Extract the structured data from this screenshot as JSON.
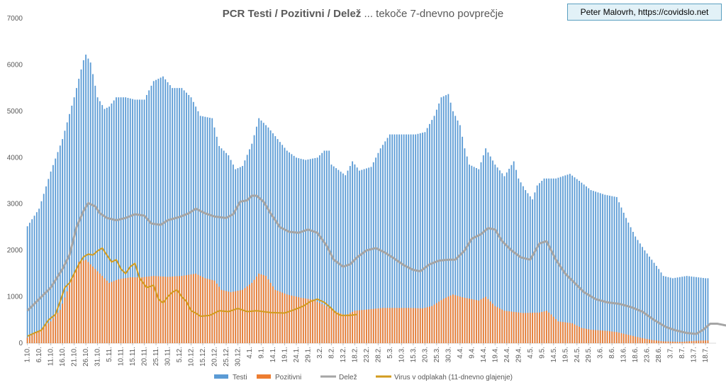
{
  "chart_data": {
    "type": "bar+line",
    "title_bold": "PCR Testi / Pozitivni / Delež",
    "title_rest": " ... tekoče 7-dnevno povprečje",
    "credit": "Peter Malovrh, https://covidslo.net",
    "y_ticks": [
      "0",
      "1000",
      "2000",
      "3000",
      "4000",
      "5000",
      "6000",
      "7000"
    ],
    "ylim": [
      0,
      7000
    ],
    "x_tick_labels": [
      "1.10.",
      "6.10.",
      "11.10.",
      "16.10.",
      "21.10.",
      "26.10.",
      "31.10.",
      "5.11.",
      "10.11.",
      "15.11.",
      "20.11.",
      "25.11.",
      "30.11.",
      "5.12.",
      "10.12.",
      "15.12.",
      "20.12.",
      "25.12.",
      "30.12.",
      "4.1.",
      "9.1.",
      "14.1.",
      "19.1.",
      "24.1.",
      "29.1.",
      "3.2.",
      "8.2.",
      "13.2.",
      "18.2.",
      "23.2.",
      "28.2.",
      "5.3.",
      "10.3.",
      "15.3.",
      "20.3.",
      "25.3.",
      "30.3.",
      "4.4.",
      "9.4.",
      "14.4.",
      "19.4.",
      "24.4.",
      "29.4.",
      "4.5.",
      "9.5.",
      "14.5.",
      "19.5.",
      "24.5.",
      "29.5.",
      "3.6.",
      "8.6.",
      "13.6.",
      "18.6.",
      "23.6.",
      "28.6.",
      "3.7.",
      "8.7.",
      "13.7.",
      "18.7."
    ],
    "days_total": 295,
    "colors": {
      "testi": "#5b9bd5",
      "pozitivni": "#ed7d31",
      "delez": "#a5a5a5",
      "virus": "#d29b1e"
    },
    "legend": [
      {
        "label": "Testi",
        "color": "#5b9bd5",
        "kind": "bar"
      },
      {
        "label": "Pozitivni",
        "color": "#ed7d31",
        "kind": "bar"
      },
      {
        "label": "Delež",
        "color": "#a5a5a5",
        "kind": "line"
      },
      {
        "label": "Virus v odplakah (11-dnevno glajenje)",
        "color": "#d29b1e",
        "kind": "line"
      }
    ],
    "testi_knots": [
      [
        0,
        2520
      ],
      [
        5,
        2900
      ],
      [
        10,
        3700
      ],
      [
        15,
        4400
      ],
      [
        20,
        5300
      ],
      [
        24,
        6100
      ],
      [
        25,
        6220
      ],
      [
        27,
        6050
      ],
      [
        30,
        5300
      ],
      [
        33,
        5050
      ],
      [
        35,
        5100
      ],
      [
        38,
        5300
      ],
      [
        42,
        5300
      ],
      [
        46,
        5250
      ],
      [
        50,
        5250
      ],
      [
        54,
        5650
      ],
      [
        58,
        5750
      ],
      [
        62,
        5500
      ],
      [
        66,
        5500
      ],
      [
        70,
        5300
      ],
      [
        74,
        4900
      ],
      [
        79,
        4850
      ],
      [
        82,
        4250
      ],
      [
        86,
        4050
      ],
      [
        89,
        3750
      ],
      [
        92,
        3820
      ],
      [
        96,
        4300
      ],
      [
        99,
        4850
      ],
      [
        103,
        4650
      ],
      [
        107,
        4400
      ],
      [
        111,
        4150
      ],
      [
        115,
        4000
      ],
      [
        119,
        3950
      ],
      [
        124,
        4000
      ],
      [
        127,
        4150
      ],
      [
        129,
        4150
      ],
      [
        130,
        3850
      ],
      [
        136,
        3620
      ],
      [
        139,
        3920
      ],
      [
        142,
        3720
      ],
      [
        147,
        3800
      ],
      [
        151,
        4200
      ],
      [
        155,
        4500
      ],
      [
        160,
        4500
      ],
      [
        166,
        4500
      ],
      [
        170,
        4550
      ],
      [
        174,
        4900
      ],
      [
        177,
        5300
      ],
      [
        180,
        5370
      ],
      [
        182,
        5000
      ],
      [
        185,
        4700
      ],
      [
        187,
        4200
      ],
      [
        189,
        3850
      ],
      [
        193,
        3750
      ],
      [
        196,
        4200
      ],
      [
        200,
        3850
      ],
      [
        204,
        3600
      ],
      [
        208,
        3920
      ],
      [
        210,
        3550
      ],
      [
        213,
        3300
      ],
      [
        216,
        3100
      ],
      [
        218,
        3400
      ],
      [
        221,
        3550
      ],
      [
        226,
        3550
      ],
      [
        232,
        3650
      ],
      [
        236,
        3500
      ],
      [
        241,
        3300
      ],
      [
        247,
        3200
      ],
      [
        252,
        3150
      ],
      [
        256,
        2700
      ],
      [
        260,
        2300
      ],
      [
        264,
        2000
      ],
      [
        267,
        1800
      ],
      [
        270,
        1600
      ],
      [
        272,
        1450
      ],
      [
        276,
        1400
      ],
      [
        282,
        1450
      ],
      [
        290,
        1400
      ],
      [
        291,
        1400
      ]
    ],
    "pozitivni_knots": [
      [
        0,
        120
      ],
      [
        5,
        260
      ],
      [
        10,
        470
      ],
      [
        14,
        720
      ],
      [
        18,
        1250
      ],
      [
        22,
        1750
      ],
      [
        25,
        1800
      ],
      [
        28,
        1650
      ],
      [
        32,
        1450
      ],
      [
        35,
        1300
      ],
      [
        39,
        1380
      ],
      [
        44,
        1420
      ],
      [
        49,
        1420
      ],
      [
        54,
        1450
      ],
      [
        60,
        1430
      ],
      [
        66,
        1450
      ],
      [
        72,
        1500
      ],
      [
        76,
        1400
      ],
      [
        80,
        1350
      ],
      [
        83,
        1150
      ],
      [
        87,
        1100
      ],
      [
        92,
        1150
      ],
      [
        96,
        1300
      ],
      [
        99,
        1500
      ],
      [
        102,
        1450
      ],
      [
        106,
        1150
      ],
      [
        111,
        1050
      ],
      [
        117,
        980
      ],
      [
        122,
        940
      ],
      [
        127,
        820
      ],
      [
        132,
        680
      ],
      [
        136,
        600
      ],
      [
        140,
        700
      ],
      [
        146,
        730
      ],
      [
        152,
        760
      ],
      [
        158,
        760
      ],
      [
        164,
        760
      ],
      [
        169,
        750
      ],
      [
        173,
        800
      ],
      [
        178,
        960
      ],
      [
        182,
        1050
      ],
      [
        186,
        990
      ],
      [
        190,
        950
      ],
      [
        193,
        920
      ],
      [
        196,
        1000
      ],
      [
        200,
        800
      ],
      [
        204,
        700
      ],
      [
        212,
        650
      ],
      [
        219,
        660
      ],
      [
        222,
        700
      ],
      [
        224,
        620
      ],
      [
        227,
        470
      ],
      [
        233,
        430
      ],
      [
        237,
        330
      ],
      [
        241,
        290
      ],
      [
        247,
        270
      ],
      [
        252,
        240
      ],
      [
        257,
        180
      ],
      [
        262,
        120
      ],
      [
        267,
        70
      ],
      [
        272,
        40
      ],
      [
        280,
        30
      ],
      [
        285,
        50
      ],
      [
        291,
        60
      ]
    ],
    "delez_knots": [
      [
        0,
        700
      ],
      [
        5,
        950
      ],
      [
        10,
        1200
      ],
      [
        15,
        1600
      ],
      [
        18,
        1900
      ],
      [
        21,
        2500
      ],
      [
        24,
        2850
      ],
      [
        26,
        3020
      ],
      [
        29,
        2950
      ],
      [
        31,
        2800
      ],
      [
        34,
        2700
      ],
      [
        38,
        2650
      ],
      [
        42,
        2700
      ],
      [
        46,
        2780
      ],
      [
        50,
        2750
      ],
      [
        53,
        2580
      ],
      [
        57,
        2550
      ],
      [
        60,
        2650
      ],
      [
        65,
        2720
      ],
      [
        69,
        2800
      ],
      [
        72,
        2900
      ],
      [
        76,
        2800
      ],
      [
        80,
        2730
      ],
      [
        85,
        2700
      ],
      [
        88,
        2780
      ],
      [
        91,
        3050
      ],
      [
        94,
        3080
      ],
      [
        96,
        3180
      ],
      [
        98,
        3180
      ],
      [
        101,
        3050
      ],
      [
        104,
        2800
      ],
      [
        108,
        2500
      ],
      [
        112,
        2400
      ],
      [
        116,
        2380
      ],
      [
        120,
        2450
      ],
      [
        124,
        2380
      ],
      [
        128,
        2100
      ],
      [
        131,
        1800
      ],
      [
        135,
        1650
      ],
      [
        138,
        1700
      ],
      [
        141,
        1850
      ],
      [
        145,
        2000
      ],
      [
        149,
        2050
      ],
      [
        153,
        1950
      ],
      [
        157,
        1820
      ],
      [
        161,
        1680
      ],
      [
        165,
        1580
      ],
      [
        168,
        1550
      ],
      [
        172,
        1700
      ],
      [
        176,
        1780
      ],
      [
        180,
        1800
      ],
      [
        183,
        1800
      ],
      [
        187,
        2000
      ],
      [
        190,
        2250
      ],
      [
        194,
        2350
      ],
      [
        197,
        2480
      ],
      [
        200,
        2450
      ],
      [
        203,
        2200
      ],
      [
        207,
        2000
      ],
      [
        211,
        1850
      ],
      [
        215,
        1800
      ],
      [
        219,
        2150
      ],
      [
        222,
        2200
      ],
      [
        226,
        1800
      ],
      [
        230,
        1500
      ],
      [
        234,
        1300
      ],
      [
        238,
        1100
      ],
      [
        243,
        950
      ],
      [
        248,
        880
      ],
      [
        253,
        850
      ],
      [
        258,
        780
      ],
      [
        263,
        680
      ],
      [
        268,
        500
      ],
      [
        273,
        350
      ],
      [
        277,
        280
      ],
      [
        282,
        220
      ],
      [
        286,
        200
      ],
      [
        289,
        290
      ],
      [
        292,
        420
      ],
      [
        295,
        420
      ],
      [
        297,
        400
      ],
      [
        299,
        380
      ]
    ],
    "virus_knots": [
      [
        0,
        150
      ],
      [
        3,
        220
      ],
      [
        6,
        280
      ],
      [
        9,
        500
      ],
      [
        12,
        620
      ],
      [
        14,
        900
      ],
      [
        16,
        1200
      ],
      [
        18,
        1300
      ],
      [
        20,
        1500
      ],
      [
        22,
        1700
      ],
      [
        24,
        1860
      ],
      [
        26,
        1920
      ],
      [
        28,
        1900
      ],
      [
        30,
        1990
      ],
      [
        32,
        2050
      ],
      [
        34,
        1900
      ],
      [
        36,
        1750
      ],
      [
        38,
        1800
      ],
      [
        40,
        1600
      ],
      [
        42,
        1500
      ],
      [
        44,
        1650
      ],
      [
        46,
        1720
      ],
      [
        48,
        1400
      ],
      [
        51,
        1200
      ],
      [
        54,
        1250
      ],
      [
        56,
        950
      ],
      [
        58,
        870
      ],
      [
        60,
        1000
      ],
      [
        62,
        1100
      ],
      [
        64,
        1150
      ],
      [
        66,
        1000
      ],
      [
        68,
        900
      ],
      [
        70,
        700
      ],
      [
        72,
        650
      ],
      [
        74,
        580
      ],
      [
        78,
        600
      ],
      [
        82,
        700
      ],
      [
        86,
        680
      ],
      [
        90,
        750
      ],
      [
        94,
        680
      ],
      [
        98,
        700
      ],
      [
        104,
        660
      ],
      [
        110,
        650
      ],
      [
        114,
        720
      ],
      [
        118,
        800
      ],
      [
        121,
        900
      ],
      [
        124,
        950
      ],
      [
        127,
        880
      ],
      [
        130,
        750
      ],
      [
        132,
        650
      ],
      [
        134,
        600
      ],
      [
        138,
        600
      ],
      [
        141,
        620
      ]
    ]
  }
}
